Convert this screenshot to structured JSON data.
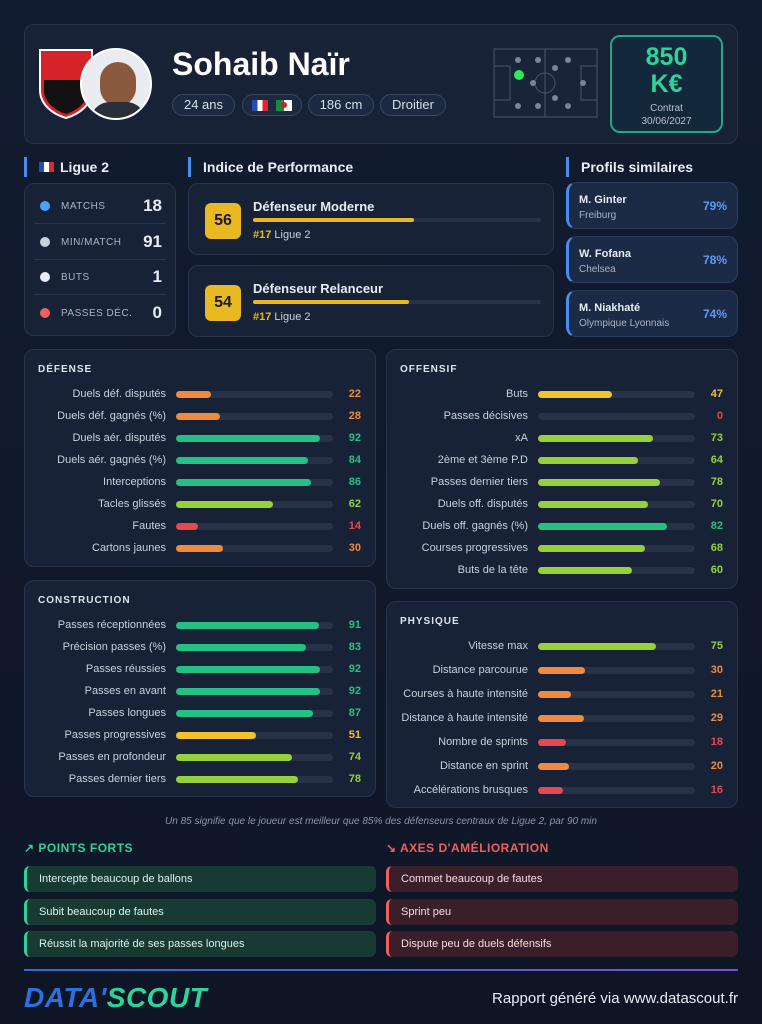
{
  "player": {
    "name": "Sohaib Naïr",
    "age": "24 ans",
    "height": "186 cm",
    "foot": "Droitier"
  },
  "value": {
    "amount": "850",
    "unit": "K€",
    "contract_label": "Contrat",
    "contract_date": "30/06/2027"
  },
  "season": {
    "league": "Ligue 2",
    "stats": [
      {
        "label": "MATCHS",
        "value": 18
      },
      {
        "label": "MIN/MATCH",
        "value": 91
      },
      {
        "label": "BUTS",
        "value": 1
      },
      {
        "label": "PASSES DÉC.",
        "value": 0
      }
    ]
  },
  "performance": {
    "title": "Indice de Performance",
    "xlim": [
      0,
      100
    ],
    "items": [
      {
        "score": 56,
        "role": "Défenseur Moderne",
        "rank": "#17",
        "league": "Ligue 2"
      },
      {
        "score": 54,
        "role": "Défenseur Relanceur",
        "rank": "#17",
        "league": "Ligue 2"
      }
    ]
  },
  "similar": {
    "title": "Profils similaires",
    "items": [
      {
        "name": "M. Ginter",
        "club": "Freiburg",
        "match": "79%"
      },
      {
        "name": "W. Fofana",
        "club": "Chelsea",
        "match": "78%"
      },
      {
        "name": "M. Niakhaté",
        "club": "Olympique Lyonnais",
        "match": "74%"
      }
    ]
  },
  "stats": {
    "xlim": [
      0,
      100
    ],
    "color_scale": [
      {
        "from": 0,
        "color": "#e5484d"
      },
      {
        "from": 20,
        "color": "#f08a3c"
      },
      {
        "from": 40,
        "color": "#f2c12e"
      },
      {
        "from": 60,
        "color": "#94d13c"
      },
      {
        "from": 80,
        "color": "#25c084"
      }
    ],
    "panels": [
      {
        "title": "DÉFENSE",
        "rows": [
          {
            "label": "Duels déf. disputés",
            "value": 22
          },
          {
            "label": "Duels déf. gagnés (%)",
            "value": 28
          },
          {
            "label": "Duels aér. disputés",
            "value": 92
          },
          {
            "label": "Duels aér. gagnés (%)",
            "value": 84
          },
          {
            "label": "Interceptions",
            "value": 86
          },
          {
            "label": "Tacles glissés",
            "value": 62
          },
          {
            "label": "Fautes",
            "value": 14
          },
          {
            "label": "Cartons jaunes",
            "value": 30
          }
        ]
      },
      {
        "title": "OFFENSIF",
        "rows": [
          {
            "label": "Buts",
            "value": 47
          },
          {
            "label": "Passes décisives",
            "value": 0
          },
          {
            "label": "xA",
            "value": 73
          },
          {
            "label": "2ème et 3ème P.D",
            "value": 64
          },
          {
            "label": "Passes dernier tiers",
            "value": 78
          },
          {
            "label": "Duels off. disputés",
            "value": 70
          },
          {
            "label": "Duels off. gagnés (%)",
            "value": 82
          },
          {
            "label": "Courses progressives",
            "value": 68
          },
          {
            "label": "Buts de la tête",
            "value": 60
          }
        ]
      },
      {
        "title": "CONSTRUCTION",
        "rows": [
          {
            "label": "Passes réceptionnées",
            "value": 91
          },
          {
            "label": "Précision passes (%)",
            "value": 83
          },
          {
            "label": "Passes réussies",
            "value": 92
          },
          {
            "label": "Passes en avant",
            "value": 92
          },
          {
            "label": "Passes longues",
            "value": 87
          },
          {
            "label": "Passes progressives",
            "value": 51
          },
          {
            "label": "Passes en profondeur",
            "value": 74
          },
          {
            "label": "Passes dernier tiers",
            "value": 78
          }
        ]
      },
      {
        "title": "PHYSIQUE",
        "rows": [
          {
            "label": "Vitesse max",
            "value": 75
          },
          {
            "label": "Distance parcourue",
            "value": 30
          },
          {
            "label": "Courses à haute intensité",
            "value": 21
          },
          {
            "label": "Distance à haute intensité",
            "value": 29
          },
          {
            "label": "Nombre de sprints",
            "value": 18
          },
          {
            "label": "Distance en sprint",
            "value": 20
          },
          {
            "label": "Accélérations brusques",
            "value": 16
          }
        ]
      }
    ]
  },
  "note": "Un 85 signifie que le joueur est meilleur que 85% des défenseurs centraux de Ligue 2, par 90 min",
  "strengths": {
    "title": "POINTS FORTS",
    "items": [
      "Intercepte beaucoup de ballons",
      "Subit beaucoup de fautes",
      "Réussit la majorité de ses passes longues"
    ]
  },
  "weaknesses": {
    "title": "AXES D'AMÉLIORATION",
    "items": [
      "Commet beaucoup de fautes",
      "Sprint peu",
      "Dispute peu de duels défensifs"
    ]
  },
  "footer": {
    "logo_a": "DATA'",
    "logo_b": "SCOUT",
    "text": "Rapport généré via www.datascout.fr"
  }
}
